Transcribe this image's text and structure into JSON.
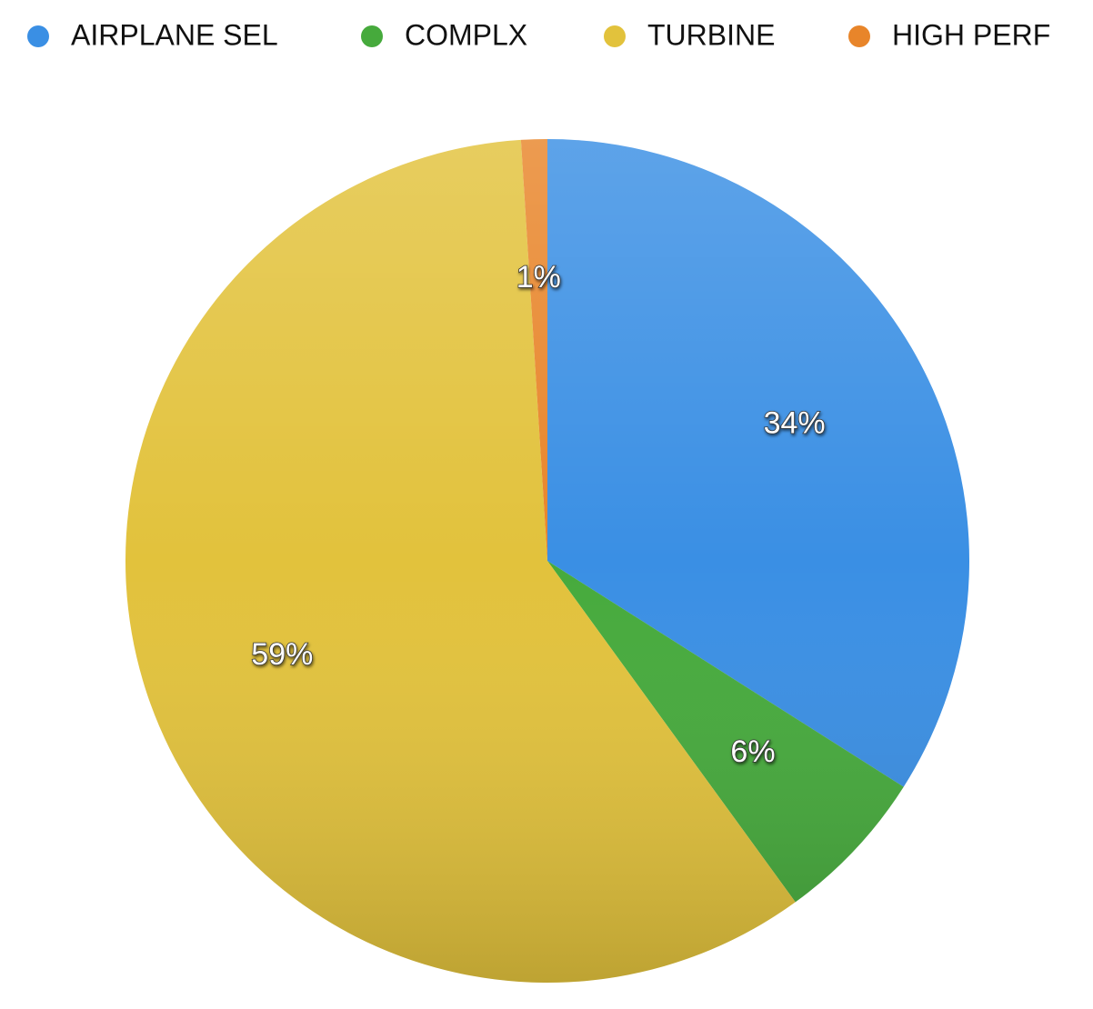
{
  "chart_data": {
    "type": "pie",
    "categories": [
      "AIRPLANE SEL",
      "COMPLX",
      "TURBINE",
      "HIGH PERF"
    ],
    "values": [
      34,
      6,
      59,
      1
    ],
    "value_labels": [
      "34%",
      "6%",
      "59%",
      "1%"
    ],
    "colors": [
      "#3a8fe4",
      "#46aa3c",
      "#e2c23c",
      "#e8852a"
    ],
    "legend": "top"
  }
}
